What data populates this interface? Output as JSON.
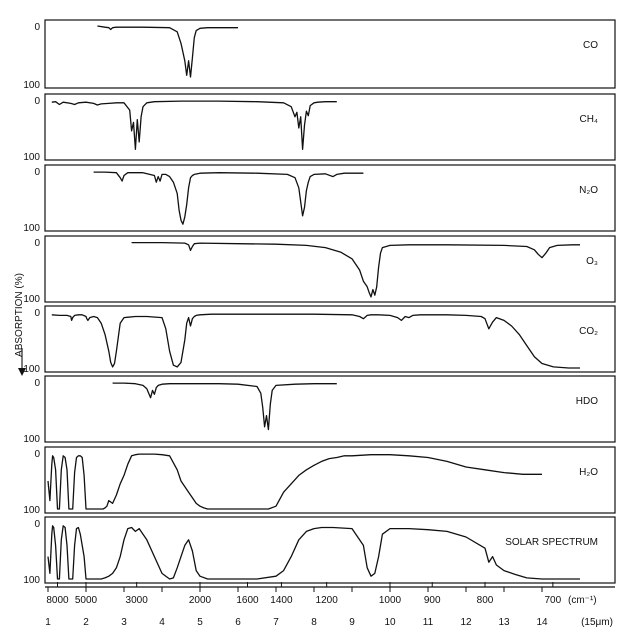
{
  "chart_data": {
    "type": "line",
    "ylabel": "ABSORPTION (%)",
    "y_ticks": [
      "0",
      "100"
    ],
    "x_wavenumber_ticks": [
      "8000",
      "5000",
      "3000",
      "2000",
      "1600",
      "1400",
      "1200",
      "1000",
      "900",
      "800",
      "700",
      "(cm⁻¹)"
    ],
    "x_wavenumber_values": [
      8000,
      5000,
      3000,
      2000,
      1600,
      1400,
      1200,
      1000,
      900,
      800,
      700
    ],
    "x_wavelength_ticks": [
      "1",
      "2",
      "3",
      "4",
      "5",
      "6",
      "7",
      "8",
      "9",
      "10",
      "11",
      "12",
      "13",
      "14",
      "(15μm)"
    ],
    "xlim_um": [
      1,
      15
    ],
    "ylim": [
      0,
      100
    ],
    "series": [
      {
        "name": "CO",
        "x": [
          2.3,
          2.5,
          2.6,
          2.65,
          2.7,
          2.8,
          3.5,
          4.2,
          4.4,
          4.5,
          4.6,
          4.65,
          4.7,
          4.75,
          4.8,
          4.85,
          4.9,
          5.0,
          5.2,
          5.6,
          6.0
        ],
        "y": [
          0,
          2,
          3,
          6,
          3,
          2,
          2,
          3,
          10,
          30,
          60,
          85,
          60,
          88,
          55,
          20,
          8,
          4,
          3,
          3,
          3
        ]
      },
      {
        "name": "CH₄",
        "x": [
          1.1,
          1.2,
          1.3,
          1.4,
          1.6,
          1.7,
          1.8,
          2.0,
          2.2,
          2.3,
          2.4,
          2.6,
          2.8,
          3.0,
          3.15,
          3.2,
          3.25,
          3.3,
          3.35,
          3.4,
          3.45,
          3.5,
          3.6,
          3.8,
          4.5,
          5.5,
          6.5,
          7.2,
          7.4,
          7.5,
          7.55,
          7.6,
          7.65,
          7.7,
          7.75,
          7.8,
          7.85,
          7.9,
          8.0,
          8.1,
          8.3,
          8.6
        ],
        "y": [
          4,
          3,
          8,
          4,
          6,
          8,
          5,
          4,
          6,
          9,
          7,
          6,
          5,
          5,
          18,
          55,
          40,
          88,
          35,
          75,
          30,
          12,
          5,
          3,
          2,
          2,
          3,
          5,
          12,
          30,
          22,
          50,
          30,
          88,
          45,
          20,
          28,
          10,
          5,
          4,
          3,
          3
        ]
      },
      {
        "name": "N₂O",
        "x": [
          2.2,
          2.5,
          2.8,
          2.9,
          2.95,
          3.0,
          3.1,
          3.5,
          3.8,
          3.85,
          3.9,
          3.95,
          4.0,
          4.1,
          4.2,
          4.3,
          4.4,
          4.45,
          4.5,
          4.55,
          4.6,
          4.65,
          4.7,
          4.75,
          4.8,
          4.85,
          5.0,
          5.5,
          6.5,
          7.3,
          7.5,
          7.6,
          7.65,
          7.7,
          7.75,
          7.8,
          7.85,
          7.9,
          8.0,
          8.3,
          8.5,
          8.6,
          8.8,
          9.3
        ],
        "y": [
          2,
          2,
          3,
          12,
          18,
          8,
          3,
          3,
          8,
          20,
          10,
          18,
          6,
          6,
          10,
          20,
          40,
          70,
          88,
          95,
          82,
          60,
          30,
          12,
          8,
          6,
          4,
          3,
          4,
          6,
          12,
          30,
          55,
          80,
          65,
          35,
          20,
          10,
          6,
          5,
          10,
          6,
          4,
          4
        ]
      },
      {
        "name": "O₃",
        "x": [
          3.2,
          4.0,
          4.6,
          4.7,
          4.75,
          4.8,
          4.85,
          5.0,
          6.0,
          7.0,
          7.8,
          8.3,
          8.7,
          9.0,
          9.2,
          9.3,
          9.4,
          9.45,
          9.5,
          9.55,
          9.6,
          9.65,
          9.7,
          9.75,
          9.8,
          10.0,
          10.5,
          11.5,
          13.0,
          13.6,
          13.8,
          13.9,
          14.0,
          14.1,
          14.2,
          14.4,
          14.8,
          15.0
        ],
        "y": [
          1,
          1,
          2,
          5,
          15,
          8,
          3,
          2,
          3,
          4,
          6,
          10,
          18,
          30,
          50,
          70,
          80,
          90,
          98,
          85,
          95,
          80,
          45,
          20,
          10,
          6,
          5,
          5,
          6,
          8,
          14,
          22,
          28,
          20,
          10,
          6,
          5,
          5
        ]
      },
      {
        "name": "CO₂",
        "x": [
          1.1,
          1.3,
          1.5,
          1.6,
          1.62,
          1.65,
          1.7,
          1.8,
          1.9,
          2.0,
          2.02,
          2.05,
          2.1,
          2.2,
          2.3,
          2.4,
          2.5,
          2.6,
          2.65,
          2.7,
          2.75,
          2.8,
          2.85,
          2.9,
          3.0,
          3.3,
          3.6,
          4.0,
          4.1,
          4.2,
          4.3,
          4.4,
          4.5,
          4.6,
          4.65,
          4.7,
          4.75,
          4.8,
          4.85,
          4.9,
          5.0,
          5.3,
          6.0,
          7.0,
          8.0,
          9.0,
          9.2,
          9.3,
          9.4,
          9.5,
          9.7,
          10.0,
          10.2,
          10.3,
          10.4,
          10.5,
          10.6,
          10.8,
          11.5,
          12.0,
          12.4,
          12.5,
          12.6,
          12.7,
          12.8,
          13.0,
          13.2,
          13.4,
          13.6,
          13.8,
          14.0,
          14.3,
          14.7,
          15.0
        ],
        "y": [
          5,
          6,
          6,
          8,
          15,
          10,
          6,
          5,
          5,
          8,
          12,
          15,
          10,
          8,
          10,
          20,
          40,
          70,
          90,
          98,
          92,
          70,
          45,
          20,
          10,
          8,
          8,
          10,
          30,
          70,
          95,
          98,
          90,
          50,
          20,
          10,
          25,
          12,
          8,
          6,
          5,
          4,
          4,
          4,
          4,
          5,
          8,
          12,
          6,
          5,
          5,
          6,
          10,
          15,
          8,
          10,
          6,
          5,
          5,
          6,
          8,
          12,
          30,
          18,
          10,
          15,
          25,
          40,
          60,
          80,
          92,
          98,
          100,
          100
        ]
      },
      {
        "name": "HDO",
        "x": [
          2.7,
          3.0,
          3.3,
          3.5,
          3.6,
          3.65,
          3.7,
          3.75,
          3.8,
          3.85,
          3.9,
          4.0,
          4.2,
          4.5,
          5.0,
          5.5,
          6.0,
          6.5,
          6.6,
          6.65,
          6.7,
          6.75,
          6.8,
          6.85,
          6.9,
          7.0,
          7.5,
          8.0,
          8.6
        ],
        "y": [
          2,
          2,
          3,
          6,
          12,
          20,
          28,
          15,
          22,
          10,
          6,
          4,
          3,
          3,
          3,
          3,
          4,
          8,
          20,
          45,
          80,
          60,
          85,
          40,
          15,
          6,
          4,
          3,
          3
        ]
      },
      {
        "name": "H₂O",
        "x": [
          1.0,
          1.05,
          1.1,
          1.12,
          1.15,
          1.2,
          1.25,
          1.3,
          1.35,
          1.4,
          1.45,
          1.5,
          1.55,
          1.6,
          1.65,
          1.7,
          1.75,
          1.8,
          1.85,
          1.9,
          1.95,
          2.0,
          2.1,
          2.2,
          2.3,
          2.4,
          2.45,
          2.5,
          2.55,
          2.6,
          2.7,
          2.8,
          2.9,
          3.0,
          3.1,
          3.2,
          3.3,
          3.4,
          3.5,
          3.6,
          3.8,
          4.0,
          4.2,
          4.4,
          4.5,
          4.6,
          4.7,
          4.8,
          4.9,
          5.0,
          5.1,
          5.2,
          5.3,
          5.5,
          6.0,
          6.5,
          6.8,
          7.0,
          7.2,
          7.4,
          7.6,
          7.8,
          8.0,
          8.2,
          8.4,
          8.6,
          8.8,
          9.0,
          9.5,
          10.0,
          10.5,
          11.0,
          11.5,
          12.0,
          12.5,
          13.0,
          13.5,
          14.0
        ],
        "y": [
          50,
          85,
          20,
          5,
          8,
          30,
          100,
          100,
          30,
          5,
          8,
          30,
          100,
          100,
          100,
          35,
          8,
          5,
          5,
          8,
          40,
          100,
          100,
          100,
          100,
          100,
          100,
          98,
          95,
          85,
          90,
          75,
          55,
          40,
          20,
          5,
          3,
          2,
          2,
          2,
          2,
          3,
          5,
          30,
          50,
          60,
          70,
          80,
          90,
          95,
          98,
          100,
          100,
          100,
          100,
          100,
          100,
          95,
          70,
          55,
          40,
          30,
          22,
          15,
          10,
          8,
          5,
          5,
          3,
          3,
          5,
          8,
          15,
          25,
          30,
          35,
          38,
          38
        ]
      },
      {
        "name": "SOLAR SPECTRUM",
        "x": [
          1.0,
          1.05,
          1.1,
          1.12,
          1.15,
          1.2,
          1.25,
          1.3,
          1.35,
          1.4,
          1.45,
          1.5,
          1.55,
          1.6,
          1.65,
          1.7,
          1.75,
          1.8,
          1.85,
          1.9,
          1.95,
          2.0,
          2.1,
          2.2,
          2.3,
          2.4,
          2.5,
          2.6,
          2.7,
          2.8,
          2.9,
          3.0,
          3.1,
          3.2,
          3.3,
          3.4,
          3.5,
          3.6,
          3.8,
          4.0,
          4.2,
          4.3,
          4.4,
          4.5,
          4.6,
          4.7,
          4.8,
          4.9,
          5.0,
          5.2,
          5.6,
          6.0,
          6.5,
          7.0,
          7.2,
          7.4,
          7.6,
          7.8,
          8.0,
          8.2,
          8.5,
          9.0,
          9.3,
          9.4,
          9.5,
          9.6,
          9.7,
          9.8,
          10.0,
          10.5,
          11.0,
          11.5,
          12.0,
          12.5,
          12.6,
          12.7,
          12.8,
          13.0,
          13.3,
          13.6,
          14.0,
          14.5,
          15.0
        ],
        "y": [
          60,
          90,
          20,
          5,
          8,
          40,
          100,
          100,
          30,
          5,
          8,
          40,
          100,
          100,
          100,
          40,
          10,
          8,
          20,
          40,
          60,
          100,
          100,
          100,
          100,
          100,
          98,
          95,
          90,
          80,
          60,
          30,
          10,
          8,
          15,
          10,
          20,
          30,
          60,
          90,
          100,
          98,
          80,
          60,
          40,
          30,
          50,
          85,
          95,
          100,
          100,
          100,
          100,
          95,
          85,
          60,
          30,
          15,
          10,
          8,
          8,
          10,
          40,
          80,
          95,
          90,
          60,
          20,
          10,
          10,
          12,
          15,
          25,
          45,
          70,
          60,
          75,
          85,
          92,
          98,
          100,
          100,
          100
        ]
      }
    ]
  }
}
